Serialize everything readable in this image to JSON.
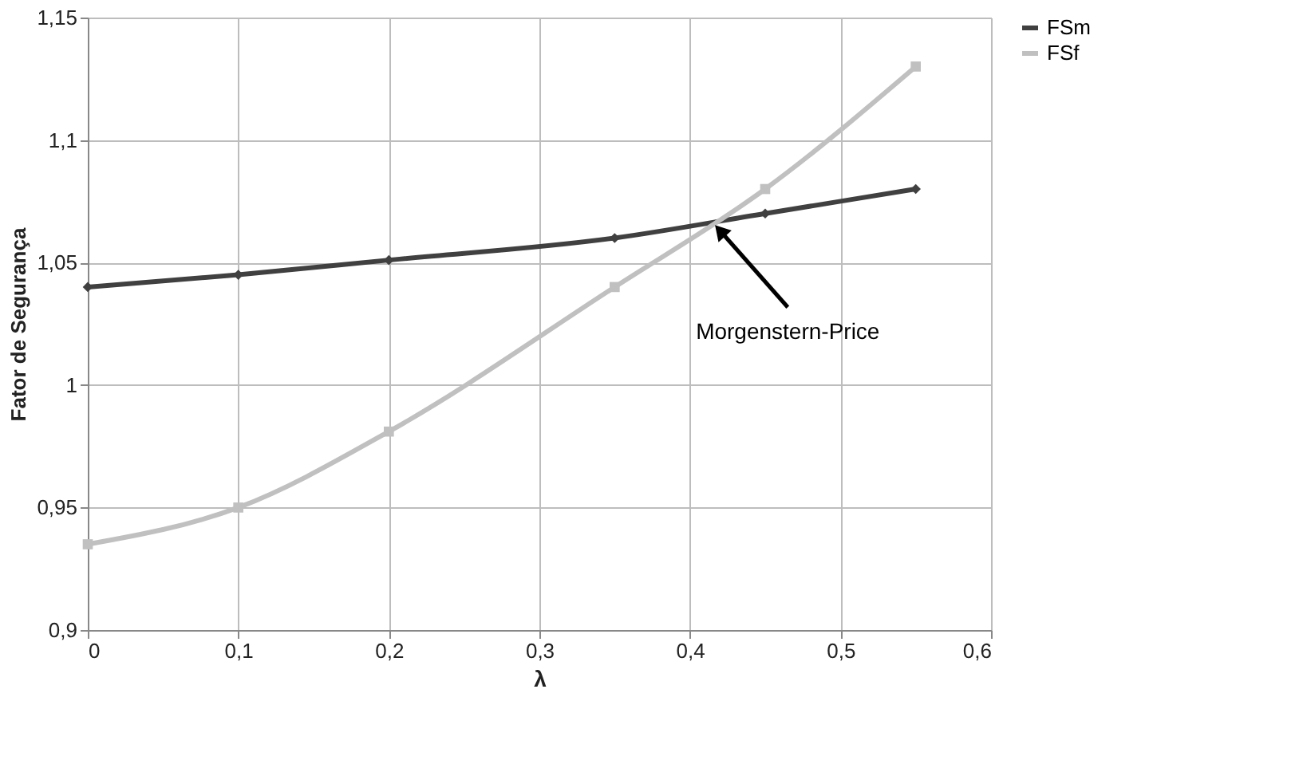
{
  "chart_data": {
    "type": "line",
    "xlabel": "λ",
    "ylabel": "Fator de Segurança",
    "x": [
      0,
      0.1,
      0.2,
      0.35,
      0.45,
      0.55
    ],
    "series": [
      {
        "name": "FSm",
        "color": "#404040",
        "marker": "diamond",
        "values": [
          1.04,
          1.045,
          1.051,
          1.06,
          1.07,
          1.08
        ]
      },
      {
        "name": "FSf",
        "color": "#c0c0c0",
        "marker": "square",
        "values": [
          0.935,
          0.95,
          0.981,
          1.04,
          1.08,
          1.13
        ]
      }
    ],
    "xlim": [
      0,
      0.6
    ],
    "xticks": [
      0,
      {
        "value": 0.1,
        "label": "0,1"
      },
      {
        "value": 0.2,
        "label": "0,2"
      },
      {
        "value": 0.3,
        "label": "0,3"
      },
      {
        "value": 0.4,
        "label": "0,4"
      },
      {
        "value": 0.5,
        "label": "0,5"
      },
      {
        "value": 0.6,
        "label": "0,6"
      }
    ],
    "ylim": [
      0.9,
      1.15
    ],
    "yticks": [
      {
        "value": 0.9,
        "label": "0,9"
      },
      {
        "value": 0.95,
        "label": "0,95"
      },
      1,
      {
        "value": 1.05,
        "label": "1,05"
      },
      {
        "value": 1.1,
        "label": "1,1"
      },
      {
        "value": 1.15,
        "label": "1,15"
      }
    ],
    "grid": true,
    "legend": "right",
    "line_style": "solid",
    "annotations": [
      {
        "text": "Morgenstern-Price",
        "x": 0.42,
        "y": 1.063
      }
    ]
  }
}
